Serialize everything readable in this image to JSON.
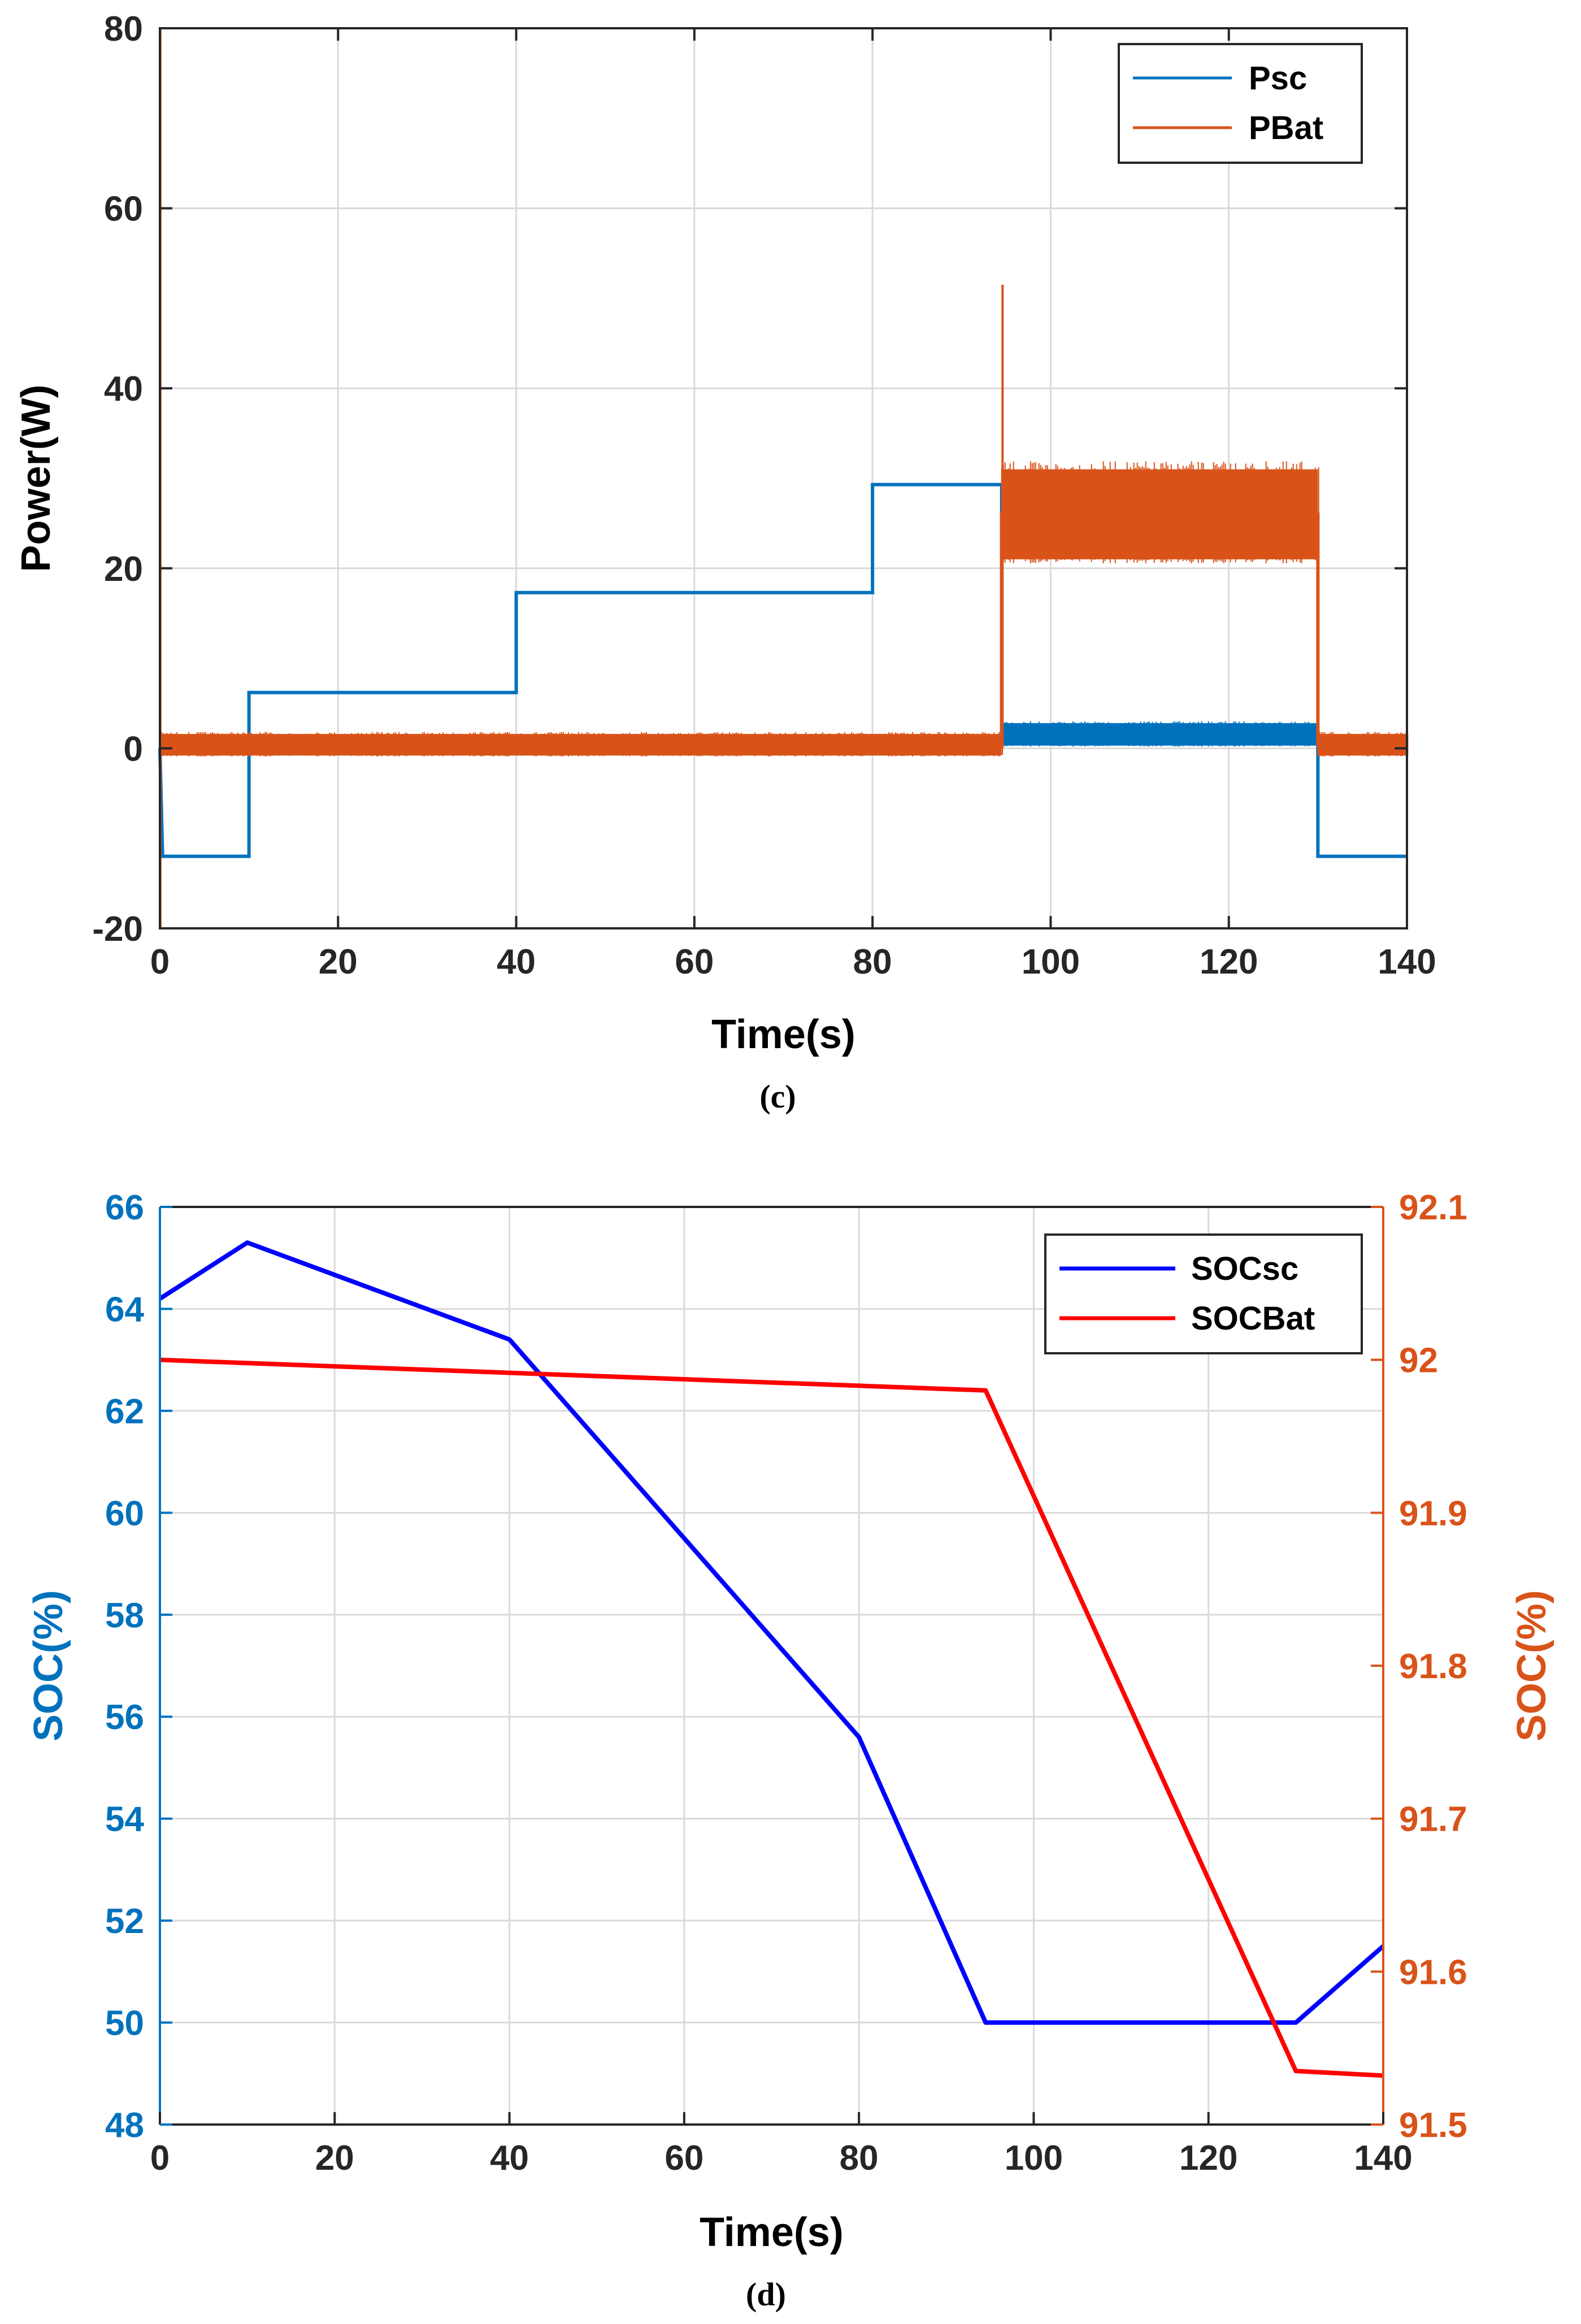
{
  "colors": {
    "psc": "#0072BD",
    "pbat": "#D95319",
    "soc_sc": "#0000FF",
    "soc_bat": "#FF0000",
    "left_axis_c": "#262626",
    "left_axis_d": "#0072BD",
    "right_axis_d": "#D95319",
    "grid": "#DADADA"
  },
  "chart_data": [
    {
      "panel": "c",
      "caption": "(c)",
      "type": "line",
      "xlabel": "Time(s)",
      "ylabel": "Power(W)",
      "xlim": [
        0,
        140
      ],
      "ylim": [
        -20,
        80
      ],
      "xticks": [
        0,
        20,
        40,
        60,
        80,
        100,
        120,
        140
      ],
      "yticks": [
        -20,
        0,
        20,
        40,
        60,
        80
      ],
      "grid": true,
      "legend_position": "top-right",
      "series": [
        {
          "name": "Psc",
          "color": "#0072BD",
          "x": [
            0,
            0.3,
            10,
            10,
            40,
            40,
            80,
            80,
            94.5,
            94.5,
            130,
            130,
            140
          ],
          "y": [
            0,
            -12,
            -12,
            6.2,
            6.2,
            17.3,
            17.3,
            29.3,
            29.3,
            1.8,
            1.8,
            -12,
            -12
          ],
          "noise_band": [
            {
              "x_start": 94.5,
              "x_end": 130,
              "low": 0.3,
              "high": 2.8
            }
          ]
        },
        {
          "name": "PBat",
          "color": "#D95319",
          "x": [
            0,
            94.5,
            94.5,
            130,
            130,
            140
          ],
          "y": [
            0.5,
            0.5,
            26,
            26,
            0.5,
            0.5
          ],
          "spikes": [
            {
              "x": 0.05,
              "from": -20,
              "to": 80
            },
            {
              "x": 94.6,
              "from": 0,
              "to": 51.5
            }
          ],
          "noise_band": [
            {
              "x_start": 0,
              "x_end": 94.5,
              "low": -0.8,
              "high": 1.6
            },
            {
              "x_start": 94.5,
              "x_end": 130,
              "low": 21,
              "high": 31
            },
            {
              "x_start": 130,
              "x_end": 140,
              "low": -0.8,
              "high": 1.6
            }
          ]
        }
      ]
    },
    {
      "panel": "d",
      "caption": "(d)",
      "type": "line",
      "xlabel": "Time(s)",
      "ylabel": "SOC(%)",
      "y2label": "SOC(%)",
      "xlim": [
        0,
        140
      ],
      "ylim": [
        48,
        66
      ],
      "y2lim": [
        91.5,
        92.1
      ],
      "xticks": [
        0,
        20,
        40,
        60,
        80,
        100,
        120,
        140
      ],
      "yticks": [
        48,
        50,
        52,
        54,
        56,
        58,
        60,
        62,
        64,
        66
      ],
      "y2ticks": [
        91.5,
        91.6,
        91.7,
        91.8,
        91.9,
        92,
        92.1
      ],
      "grid": true,
      "legend_position": "top-right",
      "series": [
        {
          "name": "SOCsc",
          "axis": "left",
          "color": "#0000FF",
          "x": [
            0,
            10,
            40,
            80,
            94.5,
            130,
            140
          ],
          "y": [
            64.2,
            65.3,
            63.4,
            55.6,
            50,
            50,
            51.5
          ]
        },
        {
          "name": "SOCBat",
          "axis": "right",
          "color": "#FF0000",
          "x": [
            0,
            94.5,
            130,
            140
          ],
          "y": [
            92,
            91.98,
            91.535,
            91.532
          ]
        }
      ]
    }
  ]
}
